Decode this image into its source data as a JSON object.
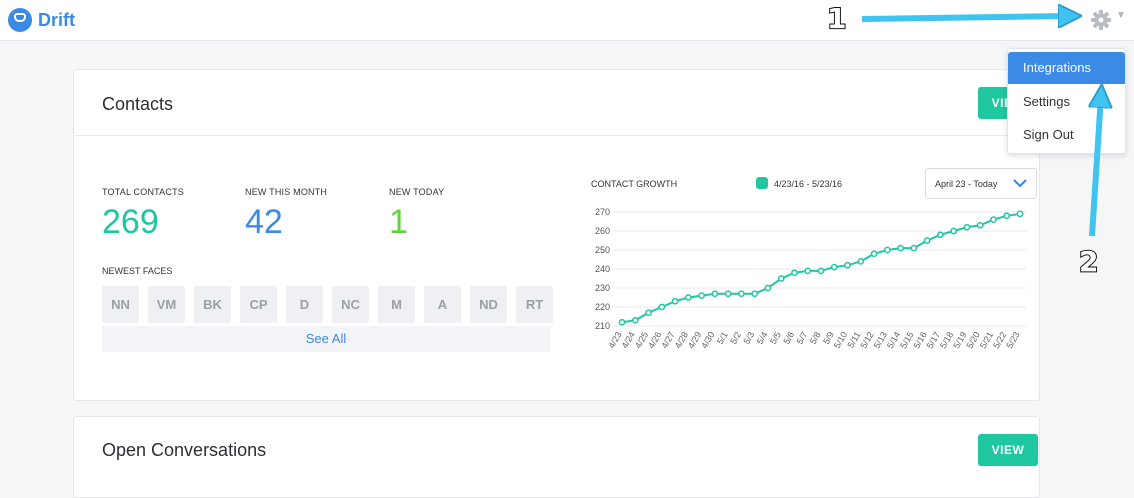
{
  "app": {
    "name": "Drift"
  },
  "header": {
    "settings_icon": "gear-icon",
    "caret_icon": "chevron-down-icon"
  },
  "dropdown": {
    "items": [
      {
        "label": "Integrations",
        "active": true
      },
      {
        "label": "Settings",
        "active": false
      },
      {
        "label": "Sign Out",
        "active": false
      }
    ]
  },
  "contacts_card": {
    "title": "Contacts",
    "view_label": "VIEW",
    "stats": [
      {
        "label": "TOTAL CONTACTS",
        "value": "269",
        "color": "#1fc7a1"
      },
      {
        "label": "NEW THIS MONTH",
        "value": "42",
        "color": "#3b8ae6"
      },
      {
        "label": "NEW TODAY",
        "value": "1",
        "color": "#5ad53c"
      }
    ],
    "faces_label": "NEWEST FACES",
    "faces": [
      "NN",
      "VM",
      "BK",
      "CP",
      "D",
      "NC",
      "M",
      "A",
      "ND",
      "RT"
    ],
    "see_all": "See All",
    "growth_label": "CONTACT GROWTH",
    "legend_label": "4/23/16 - 5/23/16",
    "date_select": "April 23 - Today"
  },
  "open_card": {
    "title": "Open Conversations",
    "view_label": "VIEW"
  },
  "annotations": {
    "one": "1",
    "two": "2"
  },
  "colors": {
    "accent": "#3b8ae6",
    "teal": "#1fc7a1",
    "green": "#5ad53c"
  },
  "chart_data": {
    "type": "line",
    "x": [
      "4/23",
      "4/24",
      "4/25",
      "4/26",
      "4/27",
      "4/28",
      "4/29",
      "4/30",
      "5/1",
      "5/2",
      "5/3",
      "5/4",
      "5/5",
      "5/6",
      "5/7",
      "5/8",
      "5/9",
      "5/10",
      "5/11",
      "5/12",
      "5/13",
      "5/14",
      "5/15",
      "5/16",
      "5/17",
      "5/18",
      "5/19",
      "5/20",
      "5/21",
      "5/22",
      "5/23"
    ],
    "series": [
      {
        "name": "4/23/16 - 5/23/16",
        "values": [
          212,
          213,
          217,
          220,
          223,
          225,
          226,
          227,
          227,
          227,
          227,
          230,
          235,
          238,
          239,
          239,
          241,
          242,
          244,
          248,
          250,
          251,
          251,
          255,
          258,
          260,
          262,
          263,
          266,
          268,
          269
        ]
      }
    ],
    "ylim": [
      210,
      270
    ],
    "yticks": [
      210,
      220,
      230,
      240,
      250,
      260,
      270
    ],
    "grid": true,
    "color": "#1fc7a1"
  }
}
